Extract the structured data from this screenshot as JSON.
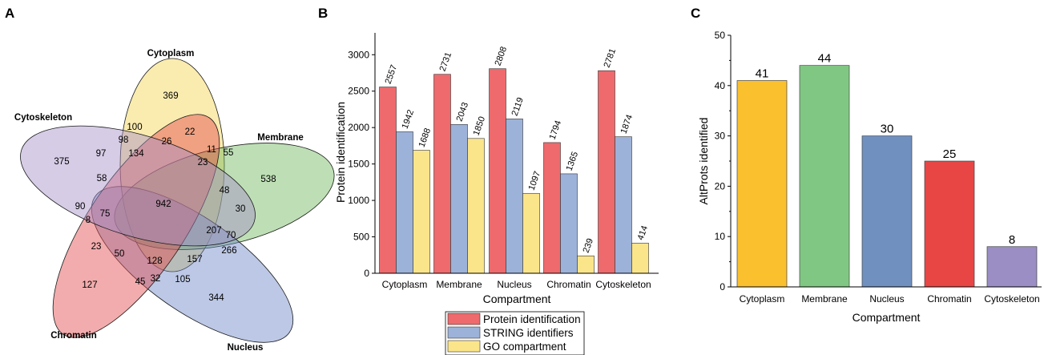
{
  "panel_labels": {
    "a": "A",
    "b": "B",
    "c": "C"
  },
  "colors": {
    "cytoplasm": "#f5d24e",
    "membrane": "#6fb85a",
    "nucleus": "#6a86c6",
    "chromatin": "#e2484a",
    "cytoskeleton": "#a38fc8",
    "protein_identification": "#ee6a6d",
    "string_identifiers": "#9db2d8",
    "go_compartment": "#fbe58a",
    "c_cytoplasm": "#fbc02d",
    "c_membrane": "#81c784",
    "c_nucleus": "#7090c0",
    "c_chromatin": "#e84545",
    "c_cytoskeleton": "#9b8ec4"
  },
  "chart_data": [
    {
      "type": "venn",
      "sets": [
        "Cytoplasm",
        "Membrane",
        "Nucleus",
        "Chromatin",
        "Cytoskeleton"
      ],
      "region_counts": [
        "369",
        "22",
        "55",
        "538",
        "11",
        "23",
        "48",
        "30",
        "100",
        "26",
        "98",
        "134",
        "97",
        "375",
        "58",
        "942",
        "90",
        "8",
        "75",
        "207",
        "70",
        "266",
        "157",
        "23",
        "50",
        "128",
        "127",
        "45",
        "32",
        "105",
        "344"
      ]
    },
    {
      "type": "bar",
      "categories": [
        "Cytoplasm",
        "Membrane",
        "Nucleus",
        "Chromatin",
        "Cytoskeleton"
      ],
      "series": [
        {
          "name": "Protein identification",
          "values": [
            2557,
            2731,
            2808,
            1794,
            2781
          ]
        },
        {
          "name": "STRING identifiers",
          "values": [
            1942,
            2043,
            2119,
            1365,
            1874
          ]
        },
        {
          "name": "GO compartment",
          "values": [
            1688,
            1850,
            1097,
            239,
            414
          ]
        }
      ],
      "xlabel": "Compartment",
      "ylabel": "Protein identification",
      "ylim": [
        0,
        3300
      ],
      "yticks": [
        "0",
        "500",
        "1000",
        "1500",
        "2000",
        "2500",
        "3000"
      ],
      "legend": "bottom"
    },
    {
      "type": "bar",
      "categories": [
        "Cytoplasm",
        "Membrane",
        "Nucleus",
        "Chromatin",
        "Cytoskeleton"
      ],
      "values": [
        41,
        44,
        30,
        25,
        8
      ],
      "xlabel": "Compartment",
      "ylabel": "AltProts identified",
      "ylim": [
        0,
        50
      ],
      "yticks": [
        "0",
        "10",
        "20",
        "30",
        "40",
        "50"
      ]
    }
  ]
}
